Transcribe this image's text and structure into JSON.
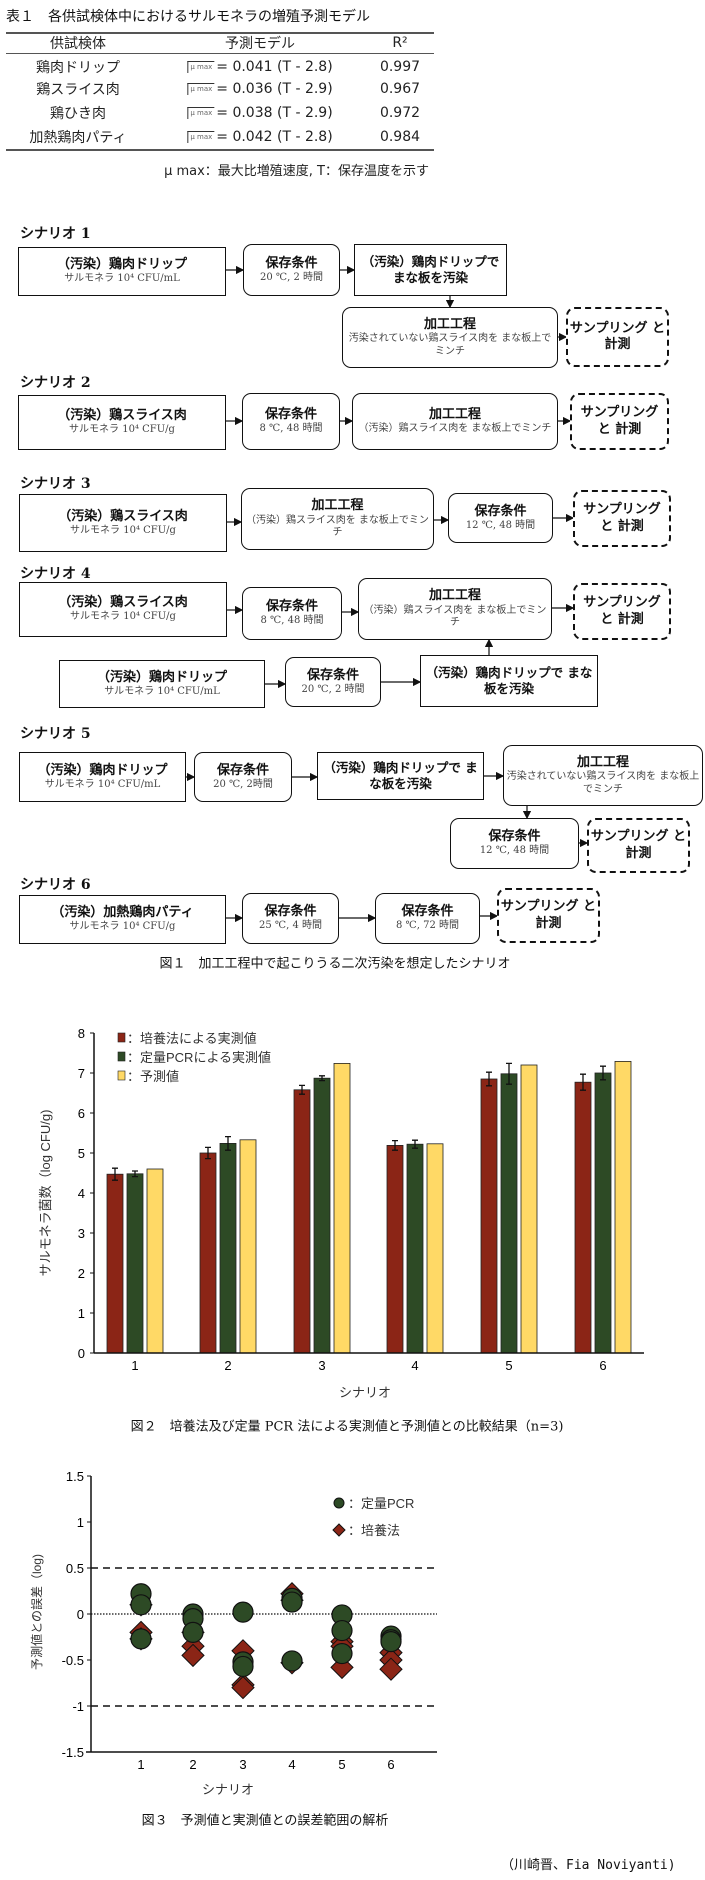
{
  "table1": {
    "title": "表１　各供試検体中におけるサルモネラの増殖予測モデル",
    "headers": [
      "供試検体",
      "予測モデル",
      "R²"
    ],
    "rows": [
      {
        "sample": "鶏肉ドリップ",
        "sqrt_symbol": "μ max",
        "model": "= 0.041 (T - 2.8)",
        "r2": "0.997"
      },
      {
        "sample": "鶏スライス肉",
        "sqrt_symbol": "μ max",
        "model": "= 0.036 (T - 2.9)",
        "r2": "0.967"
      },
      {
        "sample": "鶏ひき肉",
        "sqrt_symbol": "μ max",
        "model": "= 0.038 (T - 2.9)",
        "r2": "0.972"
      },
      {
        "sample": "加熱鶏肉パティ",
        "sqrt_symbol": "μ max",
        "model": "= 0.042 (T - 2.8)",
        "r2": "0.984"
      }
    ],
    "note": "μ max：最大比増殖速度, T：保存温度を示す"
  },
  "figure1": {
    "caption": "図１　加工工程中で起こりうる二次汚染を想定したシナリオ",
    "scenarios": [
      {
        "label": "シナリオ 1",
        "boxes": [
          {
            "title": "（汚染）鶏肉ドリップ",
            "sub": "サルモネラ 10⁴ CFU/mL"
          },
          {
            "title": "保存条件",
            "sub": "20 ℃, 2 時間"
          },
          {
            "title": "（汚染）鶏肉ドリップで まな板を汚染",
            "sub": ""
          },
          {
            "title": "加工工程",
            "sub": "汚染されていない鶏スライス肉を まな板上でミンチ"
          },
          {
            "title": "サンプリング と 計測",
            "sub": ""
          }
        ]
      },
      {
        "label": "シナリオ 2",
        "boxes": [
          {
            "title": "（汚染）鶏スライス肉",
            "sub": "サルモネラ 10⁴ CFU/g"
          },
          {
            "title": "保存条件",
            "sub": "8 ℃, 48 時間"
          },
          {
            "title": "加工工程",
            "sub": "（汚染）鶏スライス肉を まな板上でミンチ"
          },
          {
            "title": "サンプリング と 計測",
            "sub": ""
          }
        ]
      },
      {
        "label": "シナリオ 3",
        "boxes": [
          {
            "title": "（汚染）鶏スライス肉",
            "sub": "サルモネラ 10⁴ CFU/g"
          },
          {
            "title": "加工工程",
            "sub": "（汚染）鶏スライス肉を まな板上でミンチ"
          },
          {
            "title": "保存条件",
            "sub": "12 ℃, 48 時間"
          },
          {
            "title": "サンプリング と 計測",
            "sub": ""
          }
        ]
      },
      {
        "label": "シナリオ 4",
        "boxes": [
          {
            "title": "（汚染）鶏スライス肉",
            "sub": "サルモネラ 10⁴ CFU/g"
          },
          {
            "title": "保存条件",
            "sub": "8 ℃, 48 時間"
          },
          {
            "title": "加工工程",
            "sub": "（汚染）鶏スライス肉を まな板上でミンチ"
          },
          {
            "title": "サンプリング と 計測",
            "sub": ""
          },
          {
            "title": "（汚染）鶏肉ドリップ",
            "sub": "サルモネラ 10⁴ CFU/mL"
          },
          {
            "title": "保存条件",
            "sub": "20 ℃, 2 時間"
          },
          {
            "title": "（汚染）鶏肉ドリップで まな板を汚染",
            "sub": ""
          }
        ]
      },
      {
        "label": "シナリオ 5",
        "boxes": [
          {
            "title": "（汚染）鶏肉ドリップ",
            "sub": "サルモネラ 10⁴ CFU/mL"
          },
          {
            "title": "保存条件",
            "sub": "20 ℃, 2時間"
          },
          {
            "title": "（汚染）鶏肉ドリップで まな板を汚染",
            "sub": ""
          },
          {
            "title": "加工工程",
            "sub": "汚染されていない鶏スライス肉を まな板上でミンチ"
          },
          {
            "title": "保存条件",
            "sub": "12 ℃, 48 時間"
          },
          {
            "title": "サンプリング と 計測",
            "sub": ""
          }
        ]
      },
      {
        "label": "シナリオ 6",
        "boxes": [
          {
            "title": "（汚染）加熱鶏肉パティ",
            "sub": "サルモネラ 10⁴ CFU/g"
          },
          {
            "title": "保存条件",
            "sub": "25 ℃, 4 時間"
          },
          {
            "title": "保存条件",
            "sub": "8 ℃, 72 時間"
          },
          {
            "title": "サンプリング と 計測",
            "sub": ""
          }
        ]
      }
    ]
  },
  "chart_data": [
    {
      "type": "bar",
      "title": "",
      "caption": "図２　培養法及び定量 PCR 法による実測値と予測値との比較結果（n=3)",
      "xlabel": "シナリオ",
      "ylabel": "サルモネラ菌数（log CFU/g)",
      "ylim": [
        0,
        8
      ],
      "yticks": [
        "0",
        "1",
        "2",
        "3",
        "4",
        "5",
        "6",
        "7",
        "8"
      ],
      "categories": [
        "1",
        "2",
        "3",
        "4",
        "5",
        "6"
      ],
      "legend_position": "top-left",
      "series": [
        {
          "name": "：培養法による実測値",
          "color": "#8b2516",
          "values": [
            4.47,
            5.0,
            6.58,
            5.19,
            6.85,
            6.77
          ],
          "errors": [
            0.15,
            0.14,
            0.11,
            0.12,
            0.17,
            0.2
          ]
        },
        {
          "name": "：定量PCRによる実測値",
          "color": "#2d4a25",
          "values": [
            4.48,
            5.24,
            6.87,
            5.22,
            6.98,
            7.0
          ],
          "errors": [
            0.07,
            0.17,
            0.06,
            0.1,
            0.26,
            0.17
          ]
        },
        {
          "name": "：予測値",
          "color": "#ffd966",
          "values": [
            4.6,
            5.33,
            7.24,
            5.23,
            7.2,
            7.29
          ]
        }
      ]
    },
    {
      "type": "scatter",
      "title": "",
      "caption": "図３　予測値と実測値との誤差範囲の解析",
      "xlabel": "シナリオ",
      "ylabel": "予測値との誤差（log)",
      "ylim": [
        -1.5,
        1.5
      ],
      "yticks": [
        "-1.5",
        "-1",
        "-0.5",
        "0",
        "0.5",
        "1",
        "1.5"
      ],
      "categories": [
        "1",
        "2",
        "3",
        "4",
        "5",
        "6"
      ],
      "reference_lines": [
        {
          "y": 0.5,
          "style": "dashed"
        },
        {
          "y": 0,
          "style": "dotted"
        },
        {
          "y": -1,
          "style": "dashed"
        }
      ],
      "legend_position": "top-right",
      "series": [
        {
          "name": "：培養法",
          "marker": "diamond",
          "color": "#8b2516",
          "values": [
            [
              0.1,
              -0.2,
              -0.27
            ],
            [
              -0.2,
              -0.35,
              -0.45
            ],
            [
              -0.4,
              -0.77,
              -0.8
            ],
            [
              0.22,
              0.15,
              -0.53
            ],
            [
              -0.3,
              -0.35,
              -0.58
            ],
            [
              -0.42,
              -0.5,
              -0.6
            ]
          ]
        },
        {
          "name": "：定量PCR",
          "marker": "circle",
          "color": "#2d4a25",
          "values": [
            [
              0.22,
              0.1,
              -0.27
            ],
            [
              0,
              -0.05,
              -0.2
            ],
            [
              0.02,
              -0.52,
              -0.57
            ],
            [
              0.17,
              0.13,
              -0.51
            ],
            [
              -0.01,
              -0.18,
              -0.43
            ],
            [
              -0.24,
              -0.28,
              -0.3
            ]
          ]
        }
      ]
    }
  ],
  "credits": "（川崎晋、Fia Noviyanti)"
}
